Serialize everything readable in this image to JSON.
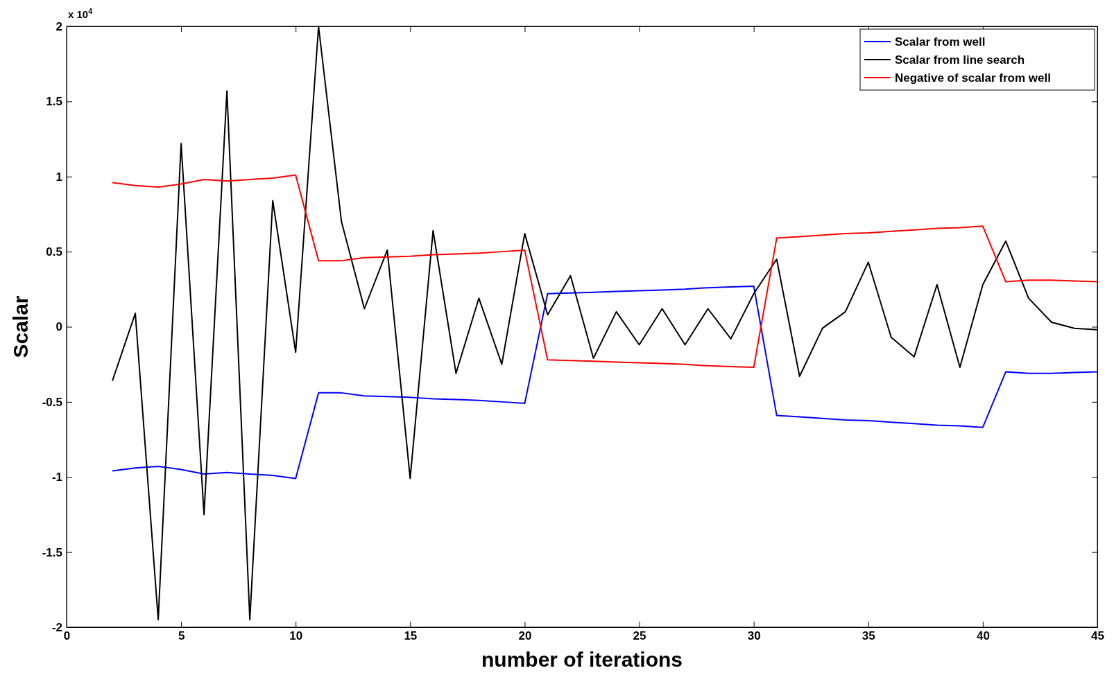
{
  "chart_data": {
    "type": "line",
    "xlabel": "number of iterations",
    "ylabel": "Scalar",
    "annotations": [
      "x 10$^{4}$"
    ],
    "x": [
      2,
      3,
      4,
      5,
      6,
      7,
      8,
      9,
      10,
      11,
      12,
      13,
      14,
      15,
      16,
      17,
      18,
      19,
      20,
      21,
      22,
      23,
      24,
      25,
      26,
      27,
      28,
      29,
      30,
      31,
      32,
      33,
      34,
      35,
      36,
      37,
      38,
      39,
      40,
      41,
      42,
      43,
      44,
      45
    ],
    "series": [
      {
        "name": "Scalar from well",
        "color": "#0000ff",
        "values": [
          -0.96,
          -0.94,
          -0.93,
          -0.95,
          -0.98,
          -0.97,
          -0.98,
          -0.99,
          -1.01,
          -0.44,
          -0.44,
          -0.46,
          -0.465,
          -0.47,
          -0.48,
          -0.485,
          -0.49,
          -0.5,
          -0.51,
          0.22,
          0.225,
          0.23,
          0.235,
          0.24,
          0.245,
          0.25,
          0.26,
          0.265,
          0.27,
          -0.59,
          -0.6,
          -0.61,
          -0.62,
          -0.625,
          -0.635,
          -0.645,
          -0.655,
          -0.66,
          -0.67,
          -0.3,
          -0.31,
          -0.31,
          -0.305,
          -0.3
        ]
      },
      {
        "name": "Scalar from line search",
        "color": "#000000",
        "values": [
          -0.36,
          0.09,
          -1.95,
          1.22,
          -1.25,
          1.57,
          -1.95,
          0.84,
          -0.17,
          2.0,
          0.7,
          0.12,
          0.51,
          -1.01,
          0.64,
          -0.31,
          0.19,
          -0.25,
          0.62,
          0.08,
          0.34,
          -0.21,
          0.1,
          -0.12,
          0.12,
          -0.12,
          0.12,
          -0.08,
          0.22,
          0.45,
          -0.33,
          -0.01,
          0.1,
          0.43,
          -0.07,
          -0.2,
          0.28,
          -0.27,
          0.28,
          0.57,
          0.19,
          0.03,
          -0.01,
          -0.02
        ]
      },
      {
        "name": "Negative of scalar from well",
        "color": "#ff0000",
        "values": [
          0.96,
          0.94,
          0.93,
          0.95,
          0.98,
          0.97,
          0.98,
          0.99,
          1.01,
          0.44,
          0.44,
          0.46,
          0.465,
          0.47,
          0.48,
          0.485,
          0.49,
          0.5,
          0.51,
          -0.22,
          -0.225,
          -0.23,
          -0.235,
          -0.24,
          -0.245,
          -0.25,
          -0.26,
          -0.265,
          -0.27,
          0.59,
          0.6,
          0.61,
          0.62,
          0.625,
          0.635,
          0.645,
          0.655,
          0.66,
          0.67,
          0.3,
          0.31,
          0.31,
          0.305,
          0.3
        ]
      }
    ],
    "xlim": [
      0,
      45
    ],
    "xticks": [
      0,
      5,
      10,
      15,
      20,
      25,
      30,
      35,
      40,
      45
    ],
    "ylim": [
      -2,
      2
    ],
    "yticks": [
      -2,
      -1.5,
      -1,
      -0.5,
      0,
      0.5,
      1,
      1.5,
      2
    ],
    "grid": false,
    "legend": "top right",
    "marker": "none",
    "line_style": "solid"
  }
}
